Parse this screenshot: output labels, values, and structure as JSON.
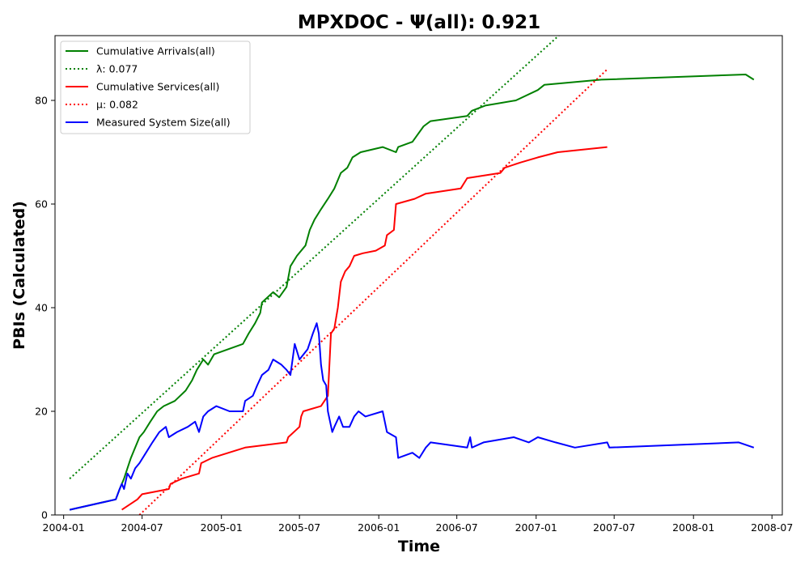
{
  "chart_data": {
    "type": "line",
    "title": "MPXDOC -  Ψ(all): 0.921",
    "xlabel": "Time",
    "ylabel": "PBIs (Calculated)",
    "xlim": [
      "2003-12-12",
      "2008-07-25"
    ],
    "ylim": [
      0,
      92.5
    ],
    "x_ticks": [
      "2004-01",
      "2004-07",
      "2005-01",
      "2005-07",
      "2006-01",
      "2006-07",
      "2007-01",
      "2007-07",
      "2008-01",
      "2008-07"
    ],
    "y_ticks": [
      0,
      20,
      40,
      60,
      80
    ],
    "grid": false,
    "legend": {
      "position": "top-left",
      "entries": [
        {
          "label": "Cumulative Arrivals(all)",
          "color": "#008000",
          "style": "solid"
        },
        {
          "label": "λ: 0.077",
          "color": "#008000",
          "style": "dotted"
        },
        {
          "label": "Cumulative Services(all)",
          "color": "#ff0000",
          "style": "solid"
        },
        {
          "label": "μ: 0.082",
          "color": "#ff0000",
          "style": "dotted"
        },
        {
          "label": "Measured System Size(all)",
          "color": "#0000ff",
          "style": "solid"
        }
      ]
    },
    "series": [
      {
        "name": "Cumulative Arrivals(all)",
        "color": "#008000",
        "style": "solid",
        "points": [
          [
            "2004-01-15",
            1
          ],
          [
            "2004-05-01",
            3
          ],
          [
            "2004-05-10",
            5
          ],
          [
            "2004-05-20",
            7
          ],
          [
            "2004-05-28",
            9
          ],
          [
            "2004-06-05",
            11
          ],
          [
            "2004-06-15",
            13
          ],
          [
            "2004-06-25",
            15
          ],
          [
            "2004-07-05",
            16
          ],
          [
            "2004-07-20",
            18
          ],
          [
            "2004-08-05",
            20
          ],
          [
            "2004-08-20",
            21
          ],
          [
            "2004-09-15",
            22
          ],
          [
            "2004-10-10",
            24
          ],
          [
            "2004-10-25",
            26
          ],
          [
            "2004-11-05",
            28
          ],
          [
            "2004-11-20",
            30
          ],
          [
            "2004-12-01",
            29
          ],
          [
            "2004-12-15",
            31
          ],
          [
            "2005-02-20",
            33
          ],
          [
            "2005-03-05",
            35
          ],
          [
            "2005-03-20",
            37
          ],
          [
            "2005-04-01",
            39
          ],
          [
            "2005-04-05",
            41
          ],
          [
            "2005-05-01",
            43
          ],
          [
            "2005-05-15",
            42
          ],
          [
            "2005-06-01",
            44
          ],
          [
            "2005-06-10",
            48
          ],
          [
            "2005-06-25",
            50
          ],
          [
            "2005-07-15",
            52
          ],
          [
            "2005-07-25",
            55
          ],
          [
            "2005-08-05",
            57
          ],
          [
            "2005-08-20",
            59
          ],
          [
            "2005-09-05",
            61
          ],
          [
            "2005-09-20",
            63
          ],
          [
            "2005-10-05",
            66
          ],
          [
            "2005-10-20",
            67
          ],
          [
            "2005-11-01",
            69
          ],
          [
            "2005-11-20",
            70
          ],
          [
            "2006-01-10",
            71
          ],
          [
            "2006-02-10",
            70
          ],
          [
            "2006-02-15",
            71
          ],
          [
            "2006-03-20",
            72
          ],
          [
            "2006-04-15",
            75
          ],
          [
            "2006-05-01",
            76
          ],
          [
            "2006-07-25",
            77
          ],
          [
            "2006-08-05",
            78
          ],
          [
            "2006-09-05",
            79
          ],
          [
            "2006-11-15",
            80
          ],
          [
            "2007-01-05",
            82
          ],
          [
            "2007-01-20",
            83
          ],
          [
            "2007-06-01",
            84
          ],
          [
            "2008-05-01",
            85
          ],
          [
            "2008-05-20",
            84
          ]
        ]
      },
      {
        "name": "λ: 0.077",
        "color": "#008000",
        "style": "dotted",
        "points": [
          [
            "2004-01-15",
            7
          ],
          [
            "2007-03-01",
            93
          ]
        ]
      },
      {
        "name": "Cumulative Services(all)",
        "color": "#ff0000",
        "style": "solid",
        "points": [
          [
            "2004-05-15",
            1
          ],
          [
            "2004-06-20",
            3
          ],
          [
            "2004-07-01",
            4
          ],
          [
            "2004-09-01",
            5
          ],
          [
            "2004-09-05",
            6
          ],
          [
            "2004-10-01",
            7
          ],
          [
            "2004-11-10",
            8
          ],
          [
            "2004-11-15",
            10
          ],
          [
            "2004-12-10",
            11
          ],
          [
            "2005-02-25",
            13
          ],
          [
            "2005-06-01",
            14
          ],
          [
            "2005-06-05",
            15
          ],
          [
            "2005-07-01",
            17
          ],
          [
            "2005-07-05",
            19
          ],
          [
            "2005-07-10",
            20
          ],
          [
            "2005-08-20",
            21
          ],
          [
            "2005-09-05",
            23
          ],
          [
            "2005-09-12",
            35
          ],
          [
            "2005-09-20",
            36
          ],
          [
            "2005-09-28",
            40
          ],
          [
            "2005-10-05",
            45
          ],
          [
            "2005-10-15",
            47
          ],
          [
            "2005-10-25",
            48
          ],
          [
            "2005-11-05",
            50
          ],
          [
            "2005-11-25",
            50.5
          ],
          [
            "2005-12-25",
            51
          ],
          [
            "2006-01-15",
            52
          ],
          [
            "2006-01-20",
            54
          ],
          [
            "2006-02-05",
            55
          ],
          [
            "2006-02-10",
            60
          ],
          [
            "2006-03-25",
            61
          ],
          [
            "2006-04-20",
            62
          ],
          [
            "2006-07-10",
            63
          ],
          [
            "2006-07-25",
            65
          ],
          [
            "2006-10-10",
            66
          ],
          [
            "2006-10-20",
            67
          ],
          [
            "2006-11-25",
            68
          ],
          [
            "2007-01-05",
            69
          ],
          [
            "2007-02-20",
            70
          ],
          [
            "2007-06-15",
            71
          ]
        ]
      },
      {
        "name": "μ: 0.082",
        "color": "#ff0000",
        "style": "dotted",
        "points": [
          [
            "2004-06-25",
            0
          ],
          [
            "2007-06-15",
            86
          ]
        ]
      },
      {
        "name": "Measured System Size(all)",
        "color": "#0000ff",
        "style": "solid",
        "points": [
          [
            "2004-01-15",
            1
          ],
          [
            "2004-05-01",
            3
          ],
          [
            "2004-05-10",
            5
          ],
          [
            "2004-05-15",
            6
          ],
          [
            "2004-05-20",
            5
          ],
          [
            "2004-05-28",
            8
          ],
          [
            "2004-06-05",
            7
          ],
          [
            "2004-06-15",
            9
          ],
          [
            "2004-06-25",
            10
          ],
          [
            "2004-07-10",
            12
          ],
          [
            "2004-07-25",
            14
          ],
          [
            "2004-08-10",
            16
          ],
          [
            "2004-08-25",
            17
          ],
          [
            "2004-09-01",
            15
          ],
          [
            "2004-09-20",
            16
          ],
          [
            "2004-10-15",
            17
          ],
          [
            "2004-11-01",
            18
          ],
          [
            "2004-11-10",
            16
          ],
          [
            "2004-11-20",
            19
          ],
          [
            "2004-12-01",
            20
          ],
          [
            "2004-12-20",
            21
          ],
          [
            "2005-01-20",
            20
          ],
          [
            "2005-02-20",
            20
          ],
          [
            "2005-02-25",
            22
          ],
          [
            "2005-03-15",
            23
          ],
          [
            "2005-03-25",
            25
          ],
          [
            "2005-04-05",
            27
          ],
          [
            "2005-04-20",
            28
          ],
          [
            "2005-05-01",
            30
          ],
          [
            "2005-05-20",
            29
          ],
          [
            "2005-06-01",
            28
          ],
          [
            "2005-06-10",
            27
          ],
          [
            "2005-06-20",
            33
          ],
          [
            "2005-07-01",
            30
          ],
          [
            "2005-07-20",
            32
          ],
          [
            "2005-08-01",
            35
          ],
          [
            "2005-08-10",
            37
          ],
          [
            "2005-08-15",
            35
          ],
          [
            "2005-08-20",
            29
          ],
          [
            "2005-08-25",
            26
          ],
          [
            "2005-09-01",
            25
          ],
          [
            "2005-09-05",
            20
          ],
          [
            "2005-09-10",
            18
          ],
          [
            "2005-09-15",
            16
          ],
          [
            "2005-09-20",
            17
          ],
          [
            "2005-10-01",
            19
          ],
          [
            "2005-10-10",
            17
          ],
          [
            "2005-10-25",
            17
          ],
          [
            "2005-11-05",
            19
          ],
          [
            "2005-11-15",
            20
          ],
          [
            "2005-12-01",
            19
          ],
          [
            "2006-01-10",
            20
          ],
          [
            "2006-01-20",
            16
          ],
          [
            "2006-02-10",
            15
          ],
          [
            "2006-02-15",
            11
          ],
          [
            "2006-03-20",
            12
          ],
          [
            "2006-04-05",
            11
          ],
          [
            "2006-04-20",
            13
          ],
          [
            "2006-05-01",
            14
          ],
          [
            "2006-07-25",
            13
          ],
          [
            "2006-08-01",
            15
          ],
          [
            "2006-08-05",
            13
          ],
          [
            "2006-09-01",
            14
          ],
          [
            "2006-11-10",
            15
          ],
          [
            "2006-12-15",
            14
          ],
          [
            "2007-01-05",
            15
          ],
          [
            "2007-02-15",
            14
          ],
          [
            "2007-04-01",
            13
          ],
          [
            "2007-06-15",
            14
          ],
          [
            "2007-06-20",
            13
          ],
          [
            "2008-04-15",
            14
          ],
          [
            "2008-05-20",
            13
          ]
        ]
      }
    ]
  }
}
